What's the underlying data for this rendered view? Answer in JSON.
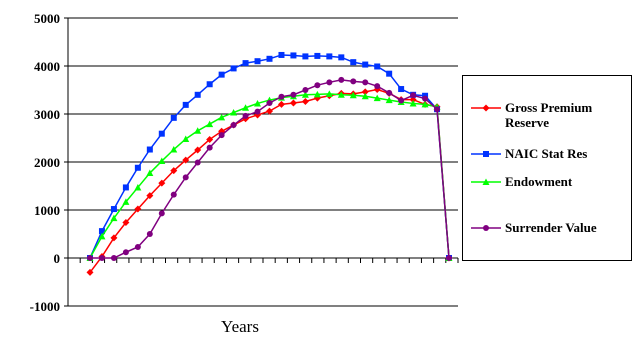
{
  "chart_data": {
    "type": "line",
    "x_label": "Years",
    "categories": [
      null,
      null,
      null,
      null,
      null,
      null,
      null,
      null,
      null,
      null,
      null,
      null,
      null,
      null,
      null,
      null,
      null,
      null,
      null,
      null,
      null,
      null,
      null,
      null,
      null,
      null,
      null,
      null,
      null,
      null,
      null
    ],
    "ylim": [
      -1000,
      5000
    ],
    "yticks": [
      -1000,
      0,
      1000,
      2000,
      3000,
      4000,
      5000
    ],
    "grid": true,
    "legend": "right",
    "series": [
      {
        "name": "Gross Premium Reserve",
        "color": "#ff0000",
        "marker": "diamond",
        "values": [
          -300,
          30,
          420,
          740,
          1020,
          1300,
          1560,
          1820,
          2040,
          2250,
          2470,
          2640,
          2770,
          2900,
          2980,
          3060,
          3200,
          3230,
          3260,
          3330,
          3380,
          3430,
          3420,
          3460,
          3510,
          3430,
          3300,
          3300,
          3200,
          3150,
          0
        ]
      },
      {
        "name": "NAIC Stat Res",
        "color": "#0033ff",
        "marker": "square",
        "values": [
          0,
          560,
          1020,
          1470,
          1880,
          2260,
          2590,
          2920,
          3190,
          3400,
          3620,
          3820,
          3950,
          4060,
          4100,
          4150,
          4230,
          4220,
          4200,
          4210,
          4200,
          4180,
          4080,
          4030,
          3990,
          3840,
          3520,
          3400,
          3380,
          3100,
          0
        ]
      },
      {
        "name": "Endowment",
        "color": "#00ff00",
        "marker": "triangle",
        "values": [
          0,
          450,
          830,
          1170,
          1470,
          1770,
          2020,
          2260,
          2480,
          2650,
          2790,
          2930,
          3030,
          3130,
          3220,
          3290,
          3340,
          3370,
          3400,
          3410,
          3420,
          3400,
          3390,
          3370,
          3330,
          3290,
          3250,
          3220,
          3200,
          3150,
          0
        ]
      },
      {
        "name": "Surrender Value",
        "color": "#800080",
        "marker": "circle",
        "values": [
          0,
          0,
          0,
          120,
          230,
          500,
          930,
          1320,
          1680,
          1990,
          2300,
          2560,
          2770,
          2960,
          3050,
          3230,
          3360,
          3400,
          3500,
          3600,
          3660,
          3710,
          3680,
          3660,
          3580,
          3440,
          3280,
          3390,
          3320,
          3100,
          0
        ]
      }
    ]
  }
}
